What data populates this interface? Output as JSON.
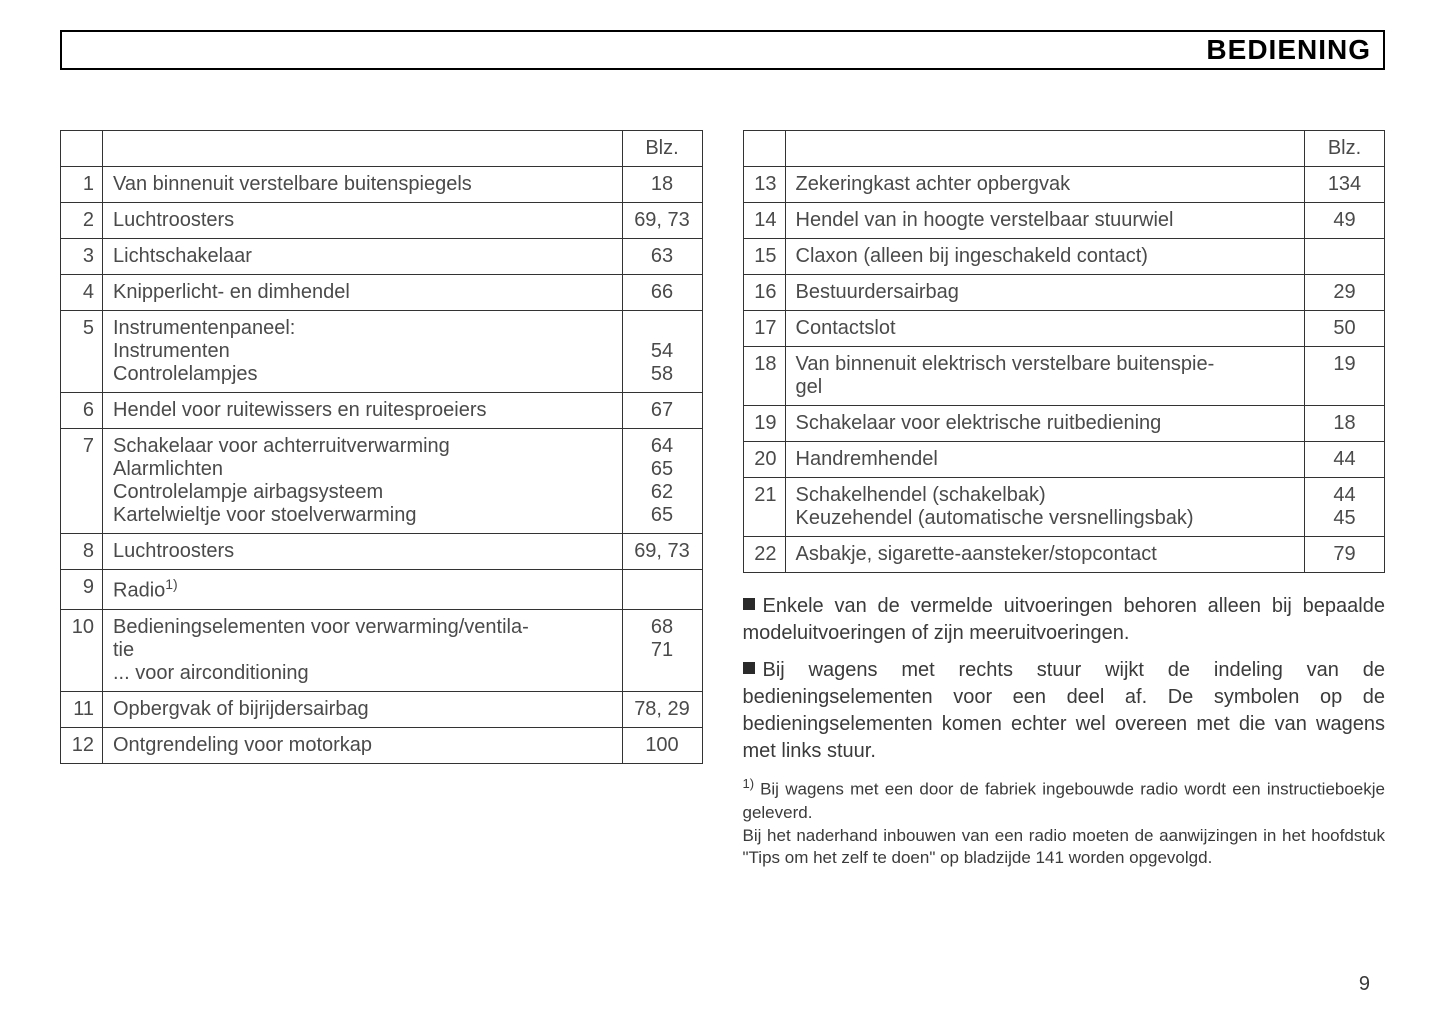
{
  "header": {
    "title": "BEDIENING"
  },
  "blz_label": "Blz.",
  "table_left": {
    "rows": [
      {
        "n": "1",
        "desc": "Van binnenuit verstelbare buitenspiegels",
        "pg": "18"
      },
      {
        "n": "2",
        "desc": "Luchtroosters",
        "pg": "69, 73"
      },
      {
        "n": "3",
        "desc": "Lichtschakelaar",
        "pg": "63"
      },
      {
        "n": "4",
        "desc": "Knipperlicht- en dimhendel",
        "pg": "66"
      },
      {
        "n": "5",
        "desc": "Instrumentenpaneel:\nInstrumenten\nControlelampjes",
        "pg": "\n54\n58"
      },
      {
        "n": "6",
        "desc": "Hendel voor ruitewissers en ruitesproeiers",
        "pg": "67"
      },
      {
        "n": "7",
        "desc": "Schakelaar voor achterruitverwarming\nAlarmlichten\nControlelampje airbagsysteem\nKartelwieltje voor stoelverwarming",
        "pg": "64\n65\n62\n65"
      },
      {
        "n": "8",
        "desc": "Luchtroosters",
        "pg": "69, 73"
      },
      {
        "n": "9",
        "desc": "Radio",
        "sup": "1)",
        "pg": ""
      },
      {
        "n": "10",
        "desc": "Bedieningselementen voor verwarming/ventila-\ntie\n... voor airconditioning",
        "pg": "68\n71"
      },
      {
        "n": "11",
        "desc": "Opbergvak of bijrijdersairbag",
        "pg": "78, 29"
      },
      {
        "n": "12",
        "desc": "Ontgrendeling voor motorkap",
        "pg": "100"
      }
    ]
  },
  "table_right": {
    "rows": [
      {
        "n": "13",
        "desc": "Zekeringkast achter opbergvak",
        "pg": "134"
      },
      {
        "n": "14",
        "desc": "Hendel van in hoogte verstelbaar stuurwiel",
        "pg": "49"
      },
      {
        "n": "15",
        "desc": "Claxon (alleen bij ingeschakeld contact)",
        "pg": ""
      },
      {
        "n": "16",
        "desc": "Bestuurdersairbag",
        "pg": "29"
      },
      {
        "n": "17",
        "desc": "Contactslot",
        "pg": "50"
      },
      {
        "n": "18",
        "desc": "Van binnenuit elektrisch verstelbare buitenspie-\ngel",
        "pg": "19"
      },
      {
        "n": "19",
        "desc": "Schakelaar voor elektrische ruitbediening",
        "pg": "18"
      },
      {
        "n": "20",
        "desc": "Handremhendel",
        "pg": "44"
      },
      {
        "n": "21",
        "desc": "Schakelhendel (schakelbak)\nKeuzehendel (automatische versnellingsbak)",
        "pg": "44\n45"
      },
      {
        "n": "22",
        "desc": "Asbakje, sigarette-aansteker/stopcontact",
        "pg": "79"
      }
    ]
  },
  "notes": {
    "bullet1": "Enkele van de vermelde uitvoeringen behoren alleen bij bepaalde modeluitvoeringen of zijn meeruitvoeringen.",
    "bullet2": "Bij wagens met rechts stuur wijkt de indeling van de bedieningselementen voor een deel af. De symbolen op de bedieningselementen komen echter wel overeen met die van wagens met links stuur.",
    "footnote_mark": "1)",
    "footnote": "Bij wagens met een door de fabriek ingebouwde radio wordt een instructieboekje geleverd.\nBij het naderhand inbouwen van een radio moeten de aanwijzingen in het hoofdstuk \"Tips om het zelf te doen\" op bladzijde 141 worden opgevolgd."
  },
  "page_number": "9",
  "colors": {
    "text": "#3a3a3a",
    "border": "#333333",
    "header_text": "#000000",
    "background": "#ffffff"
  }
}
